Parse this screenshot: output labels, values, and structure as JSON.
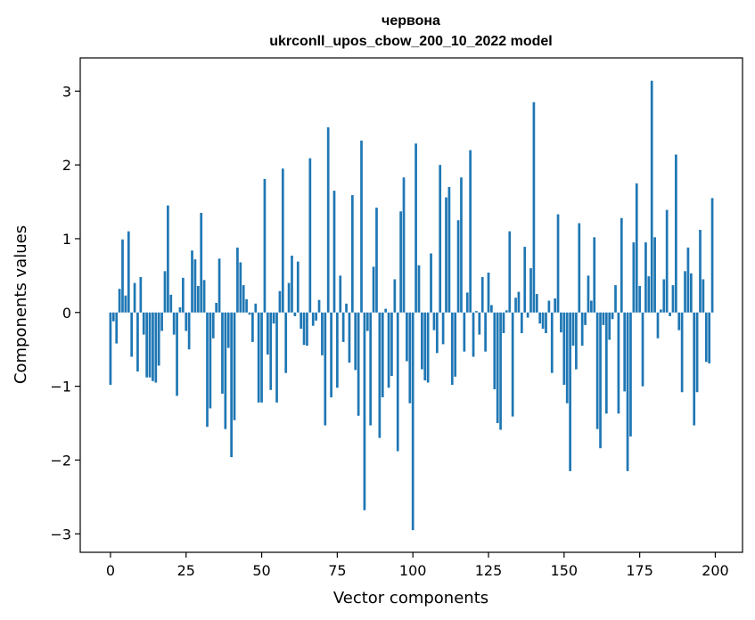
{
  "chart_data": {
    "type": "bar",
    "title_line1": "червона",
    "title_line2": "ukrconll_upos_cbow_200_10_2022 model",
    "xlabel": "Vector components",
    "ylabel": "Components values",
    "xlim": [
      -10,
      209
    ],
    "ylim": [
      -3.25,
      3.45
    ],
    "xticks": [
      0,
      25,
      50,
      75,
      100,
      125,
      150,
      175,
      200
    ],
    "xtick_labels": [
      "0",
      "25",
      "50",
      "75",
      "100",
      "125",
      "150",
      "175",
      "200"
    ],
    "yticks": [
      -3,
      -2,
      -1,
      0,
      1,
      2,
      3
    ],
    "ytick_labels": [
      "−3",
      "−2",
      "−1",
      "0",
      "1",
      "2",
      "3"
    ],
    "bar_color": "#1f77b4",
    "legend": "none",
    "grid": false,
    "x": [
      0,
      1,
      2,
      3,
      4,
      5,
      6,
      7,
      8,
      9,
      10,
      11,
      12,
      13,
      14,
      15,
      16,
      17,
      18,
      19,
      20,
      21,
      22,
      23,
      24,
      25,
      26,
      27,
      28,
      29,
      30,
      31,
      32,
      33,
      34,
      35,
      36,
      37,
      38,
      39,
      40,
      41,
      42,
      43,
      44,
      45,
      46,
      47,
      48,
      49,
      50,
      51,
      52,
      53,
      54,
      55,
      56,
      57,
      58,
      59,
      60,
      61,
      62,
      63,
      64,
      65,
      66,
      67,
      68,
      69,
      70,
      71,
      72,
      73,
      74,
      75,
      76,
      77,
      78,
      79,
      80,
      81,
      82,
      83,
      84,
      85,
      86,
      87,
      88,
      89,
      90,
      91,
      92,
      93,
      94,
      95,
      96,
      97,
      98,
      99,
      100,
      101,
      102,
      103,
      104,
      105,
      106,
      107,
      108,
      109,
      110,
      111,
      112,
      113,
      114,
      115,
      116,
      117,
      118,
      119,
      120,
      121,
      122,
      123,
      124,
      125,
      126,
      127,
      128,
      129,
      130,
      131,
      132,
      133,
      134,
      135,
      136,
      137,
      138,
      139,
      140,
      141,
      142,
      143,
      144,
      145,
      146,
      147,
      148,
      149,
      150,
      151,
      152,
      153,
      154,
      155,
      156,
      157,
      158,
      159,
      160,
      161,
      162,
      163,
      164,
      165,
      166,
      167,
      168,
      169,
      170,
      171,
      172,
      173,
      174,
      175,
      176,
      177,
      178,
      179,
      180,
      181,
      182,
      183,
      184,
      185,
      186,
      187,
      188,
      189,
      190,
      191,
      192,
      193,
      194,
      195,
      196,
      197,
      198,
      199
    ],
    "values": [
      -0.98,
      -0.12,
      -0.42,
      0.32,
      0.99,
      0.23,
      1.1,
      -0.6,
      0.4,
      -0.8,
      0.48,
      -0.3,
      -0.88,
      -0.88,
      -0.93,
      -0.95,
      -0.72,
      -0.25,
      0.56,
      1.45,
      0.24,
      -0.3,
      -1.13,
      0.07,
      0.47,
      -0.25,
      -0.5,
      0.84,
      0.72,
      0.36,
      1.35,
      0.44,
      -1.55,
      -1.3,
      -0.35,
      0.13,
      0.73,
      -1.1,
      -1.58,
      -0.48,
      -1.96,
      -1.46,
      0.88,
      0.68,
      0.37,
      0.18,
      -0.03,
      -0.4,
      0.12,
      -1.22,
      -1.22,
      1.81,
      -0.57,
      -1.05,
      -0.15,
      -1.22,
      0.29,
      1.95,
      -0.82,
      0.4,
      0.77,
      -0.05,
      0.69,
      -0.22,
      -0.44,
      -0.45,
      2.09,
      -0.18,
      -0.11,
      0.17,
      -0.58,
      -1.53,
      2.51,
      -1.15,
      1.65,
      -1.02,
      0.5,
      -0.4,
      0.12,
      -0.68,
      1.59,
      -0.78,
      -1.4,
      2.33,
      -2.68,
      -0.25,
      -1.53,
      0.62,
      1.42,
      -1.7,
      -1.15,
      0.05,
      -1.02,
      -0.86,
      0.45,
      -1.88,
      1.37,
      1.83,
      -0.66,
      -1.23,
      -2.95,
      2.29,
      0.64,
      -0.77,
      -0.92,
      -0.95,
      0.8,
      -0.24,
      -0.55,
      2.0,
      -0.43,
      1.56,
      1.7,
      -0.98,
      -0.87,
      1.25,
      1.83,
      -0.53,
      0.27,
      2.2,
      -0.6,
      0.02,
      -0.3,
      0.48,
      -0.53,
      0.54,
      0.1,
      -1.04,
      -1.5,
      -1.59,
      -0.28,
      0.03,
      1.1,
      -1.41,
      0.2,
      0.28,
      -0.28,
      0.89,
      -0.07,
      0.6,
      2.85,
      0.25,
      -0.15,
      -0.22,
      -0.28,
      0.16,
      -0.82,
      0.19,
      1.33,
      -0.27,
      -0.98,
      -1.23,
      -2.15,
      -0.45,
      -0.77,
      1.21,
      -0.45,
      -0.17,
      0.5,
      0.16,
      1.02,
      -1.58,
      -1.84,
      -0.17,
      -1.37,
      -0.37,
      -0.09,
      0.37,
      -1.37,
      1.28,
      -1.07,
      -2.15,
      -1.68,
      0.95,
      1.75,
      0.36,
      -1.0,
      0.95,
      0.49,
      3.14,
      1.02,
      -0.35,
      0.04,
      0.45,
      1.39,
      -0.05,
      0.37,
      2.14,
      -0.24,
      -1.08,
      0.56,
      0.88,
      0.53,
      -1.53,
      -1.08,
      1.12,
      0.45,
      -0.67,
      -0.69,
      1.55
    ]
  }
}
